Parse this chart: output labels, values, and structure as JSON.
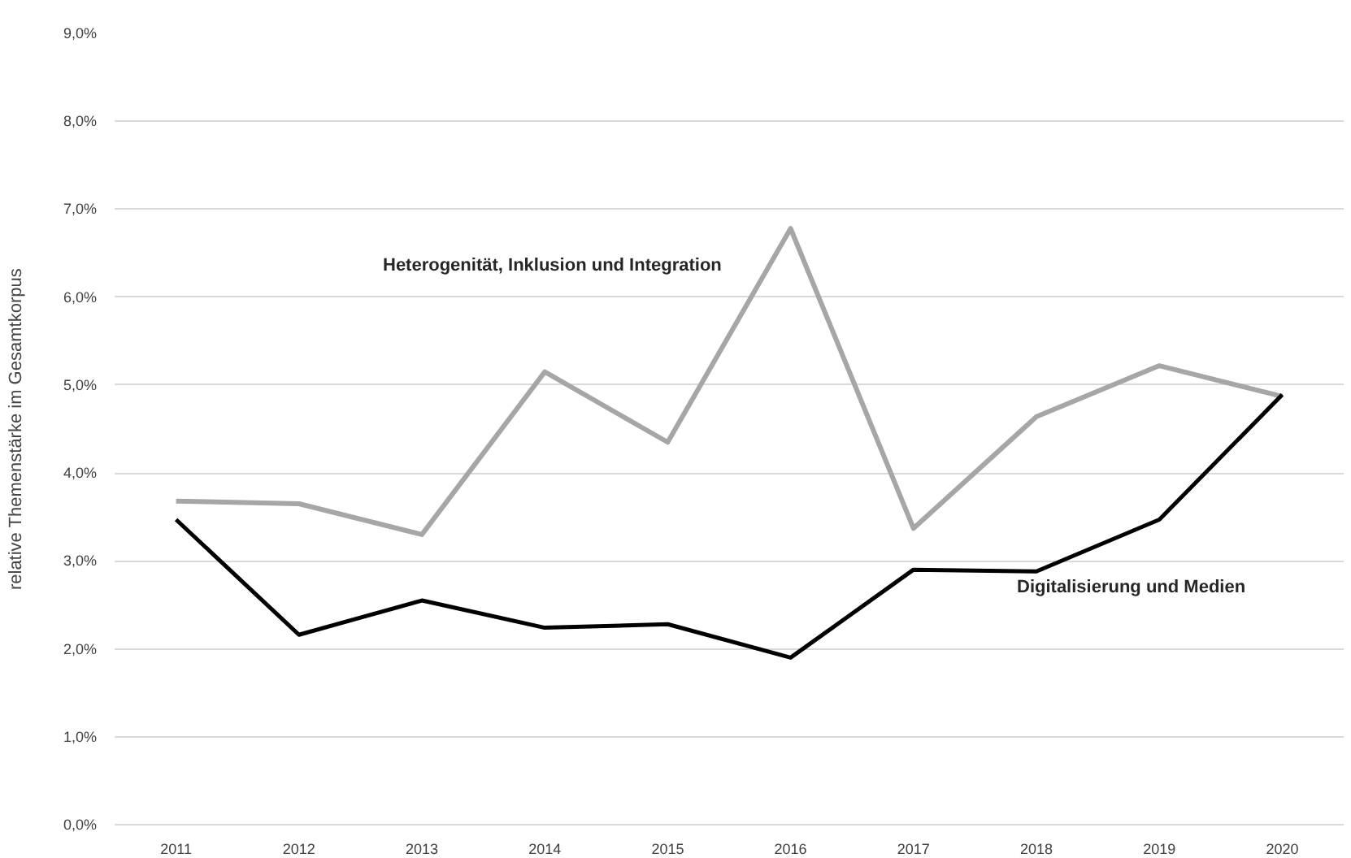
{
  "chart_data": {
    "type": "line",
    "ylabel": "relative Themenstärke im Gesamtkorpus",
    "categories": [
      "2011",
      "2012",
      "2013",
      "2014",
      "2015",
      "2016",
      "2017",
      "2018",
      "2019",
      "2020"
    ],
    "series": [
      {
        "name": "Heterogenität, Inklusion und Integration",
        "color": "#a6a6a6",
        "values": [
          3.68,
          3.65,
          3.3,
          5.15,
          4.35,
          6.78,
          3.37,
          4.64,
          5.22,
          4.87
        ]
      },
      {
        "name": "Digitalisierung und Medien",
        "color": "#000000",
        "values": [
          3.47,
          2.16,
          2.55,
          2.24,
          2.28,
          1.9,
          2.9,
          2.88,
          3.47,
          4.89
        ]
      }
    ],
    "ylim": [
      0,
      9
    ],
    "yticks": [
      {
        "value": 0,
        "label": "0,0%"
      },
      {
        "value": 1,
        "label": "1,0%"
      },
      {
        "value": 2,
        "label": "2,0%"
      },
      {
        "value": 3,
        "label": "3,0%"
      },
      {
        "value": 4,
        "label": "4,0%"
      },
      {
        "value": 5,
        "label": "5,0%"
      },
      {
        "value": 6,
        "label": "6,0%"
      },
      {
        "value": 7,
        "label": "7,0%"
      },
      {
        "value": 8,
        "label": "8,0%"
      },
      {
        "value": 9,
        "label": "9,0%"
      }
    ],
    "grid": "y",
    "marker": "none",
    "line_style": "solid"
  }
}
